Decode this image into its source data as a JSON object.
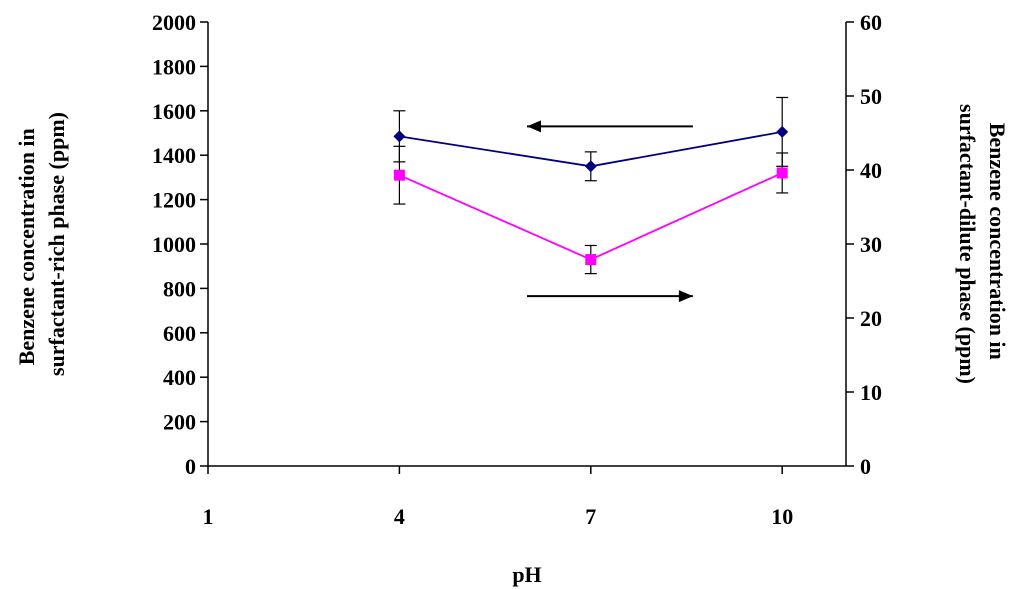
{
  "chart_data": {
    "type": "line",
    "title": "",
    "xlabel": "pH",
    "x_ticks": [
      1,
      4,
      7,
      10
    ],
    "xlim": [
      1,
      11
    ],
    "y_left": {
      "label_lines": [
        "Benzene concentration in",
        "surfactant-rich phase (ppm)"
      ],
      "ylim": [
        0,
        2000
      ],
      "ticks": [
        0,
        200,
        400,
        600,
        800,
        1000,
        1200,
        1400,
        1600,
        1800,
        2000
      ]
    },
    "y_right": {
      "label_lines": [
        "Benzene concentration in",
        "surfactant-dilute phase (ppm)"
      ],
      "ylim": [
        0,
        60
      ],
      "ticks": [
        0,
        10,
        20,
        30,
        40,
        50,
        60
      ]
    },
    "grid": false,
    "legend": "none",
    "series": [
      {
        "axis": "left",
        "color": "#000080",
        "marker": "diamond",
        "x": [
          4,
          7,
          10
        ],
        "y": [
          1485,
          1350,
          1505
        ],
        "err": [
          115,
          65,
          155
        ]
      },
      {
        "axis": "right",
        "color": "#ff00ff",
        "marker": "square",
        "x": [
          4,
          7,
          10
        ],
        "y": [
          39.3,
          27.9,
          39.6
        ],
        "err": [
          3.9,
          1.9,
          2.7
        ]
      }
    ],
    "annotations": [
      {
        "type": "arrow",
        "direction": "left",
        "points_to": "left-axis",
        "x_start": 8.6,
        "x_end": 6.0,
        "y_left": 1530
      },
      {
        "type": "arrow",
        "direction": "right",
        "points_to": "right-axis",
        "x_start": 6.0,
        "x_end": 8.6,
        "y_left": 765
      }
    ]
  }
}
